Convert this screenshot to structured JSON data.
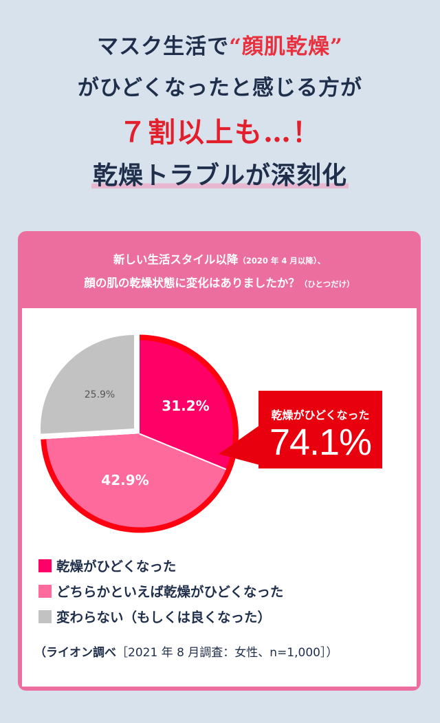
{
  "headline": {
    "line1_pre": "マスク生活で",
    "quote_open": "“",
    "line1_key": "顔肌乾燥",
    "quote_close": "”",
    "line2": "がひどくなったと感じる方が",
    "line3": "７割以上も…！",
    "line4": "乾燥トラブルが深刻化"
  },
  "survey": {
    "question_main": "新しい生活スタイル以降",
    "question_period": "（2020 年 4 月以降）、",
    "question_line2": "顔の肌の乾燥状態に変化はありましたか？",
    "question_note": "（ひとつだけ）"
  },
  "callout": {
    "label": "乾燥がひどくなった",
    "value": "74.1%"
  },
  "source": {
    "org": "（ライオン調べ",
    "detail": "［2021 年 8 月調査：女性、n=1,000］）"
  },
  "colors": {
    "background": "#d8e2ec",
    "card": "#eb6e9f",
    "headline_red": "#e2202d",
    "callout": "#e9000f"
  },
  "chart_data": {
    "type": "pie",
    "start": "12 o'clock, clockwise",
    "slices": [
      {
        "label": "乾燥がひどくなった",
        "value": 31.2,
        "display": "31.2%",
        "color": "#ff0066",
        "text_color": "#ffffff"
      },
      {
        "label": "どちらかといえば乾燥がひどくなった",
        "value": 42.9,
        "display": "42.9%",
        "color": "#ff6a9d",
        "text_color": "#ffffff"
      },
      {
        "label": "変わらない（もしくは良くなった）",
        "value": 25.9,
        "display": "25.9%",
        "color": "#c2c2c2",
        "text_color": "#555555"
      }
    ],
    "highlight_color": "#ff0010"
  }
}
